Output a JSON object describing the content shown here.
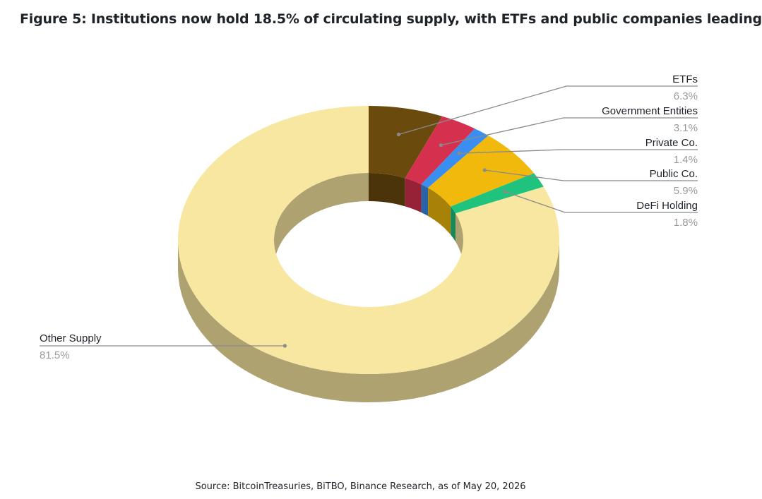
{
  "chart_data": {
    "type": "pie",
    "variant": "3d-donut",
    "title": "Figure 5: Institutions now hold 18.5% of circulating supply, with ETFs and public companies leading",
    "source": "Source: BitcoinTreasuries, BiTBO, Binance Research, as of May 20, 2026",
    "slices": [
      {
        "label": "ETFs",
        "value": 6.3,
        "display": "6.3%",
        "color": "#6b4a0e"
      },
      {
        "label": "Government Entities",
        "value": 3.1,
        "display": "3.1%",
        "color": "#d6304f"
      },
      {
        "label": "Private Co.",
        "value": 1.4,
        "display": "1.4%",
        "color": "#3a8ef0"
      },
      {
        "label": "Public Co.",
        "value": 5.9,
        "display": "5.9%",
        "color": "#f0b90b"
      },
      {
        "label": "DeFi Holding",
        "value": 1.8,
        "display": "1.8%",
        "color": "#1fc37e"
      },
      {
        "label": "Other Supply",
        "value": 81.5,
        "display": "81.5%",
        "color": "#f8e7a1"
      }
    ]
  }
}
